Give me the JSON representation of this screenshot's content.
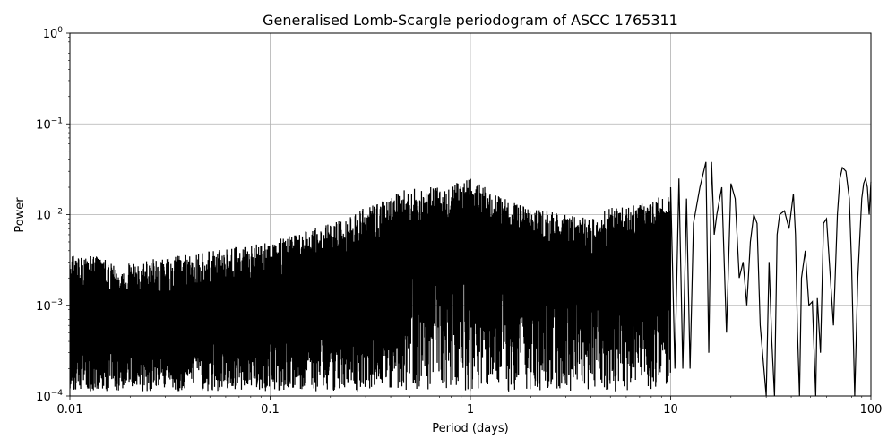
{
  "chart_data": {
    "type": "line",
    "title": "Generalised Lomb-Scargle periodogram of ASCC 1765311",
    "xlabel": "Period (days)",
    "ylabel": "Power",
    "x_scale": "log",
    "y_scale": "log",
    "xlim": [
      0.01,
      100
    ],
    "ylim": [
      0.0001,
      1
    ],
    "grid": true,
    "x_ticks": [
      {
        "value": 0.01,
        "label": "0.01"
      },
      {
        "value": 0.1,
        "label": "0.1"
      },
      {
        "value": 1,
        "label": "1"
      },
      {
        "value": 10,
        "label": "10"
      },
      {
        "value": 100,
        "label": "100"
      }
    ],
    "y_ticks": [
      {
        "value": 0.0001,
        "base": "10",
        "exp": "−4"
      },
      {
        "value": 0.001,
        "base": "10",
        "exp": "−3"
      },
      {
        "value": 0.01,
        "base": "10",
        "exp": "−2"
      },
      {
        "value": 0.1,
        "base": "10",
        "exp": "−1"
      },
      {
        "value": 1,
        "base": "10",
        "exp": "0"
      }
    ],
    "series": [
      {
        "color": "#000000",
        "envelope_x": [
          0.01,
          0.02,
          0.05,
          0.1,
          0.2,
          0.3,
          0.5,
          0.7,
          1,
          1.5,
          2,
          3,
          4,
          5,
          6,
          8,
          10
        ],
        "envelope_y": [
          0.004,
          0.003,
          0.004,
          0.005,
          0.008,
          0.012,
          0.02,
          0.02,
          0.025,
          0.015,
          0.012,
          0.01,
          0.009,
          0.012,
          0.012,
          0.015,
          0.018
        ],
        "long_period_x": [
          10,
          10.5,
          11,
          11.5,
          12,
          12.5,
          13,
          14,
          15,
          15.5,
          16,
          16.5,
          17,
          18,
          19,
          20,
          21,
          22,
          23,
          24,
          25,
          26,
          27,
          28,
          30,
          31,
          32,
          33,
          34,
          35,
          37,
          39,
          41,
          42,
          43,
          44,
          45,
          47,
          49,
          51,
          53,
          54,
          56,
          58,
          60,
          62,
          65,
          68,
          70,
          72,
          75,
          78,
          80,
          83,
          86,
          90,
          92,
          94,
          96,
          98,
          100
        ],
        "long_period_y": [
          0.02,
          0.0002,
          0.025,
          0.0002,
          0.015,
          0.0002,
          0.008,
          0.02,
          0.038,
          0.0003,
          0.038,
          0.006,
          0.01,
          0.02,
          0.0005,
          0.022,
          0.015,
          0.002,
          0.003,
          0.001,
          0.005,
          0.01,
          0.008,
          0.0006,
          0.0001,
          0.003,
          0.0004,
          0.0001,
          0.006,
          0.01,
          0.011,
          0.007,
          0.017,
          0.006,
          0.0005,
          0.0001,
          0.002,
          0.004,
          0.001,
          0.0011,
          0.0001,
          0.0012,
          0.0003,
          0.008,
          0.009,
          0.003,
          0.0006,
          0.01,
          0.025,
          0.033,
          0.03,
          0.015,
          0.003,
          0.0001,
          0.002,
          0.015,
          0.022,
          0.025,
          0.02,
          0.01,
          0.023
        ]
      }
    ]
  }
}
